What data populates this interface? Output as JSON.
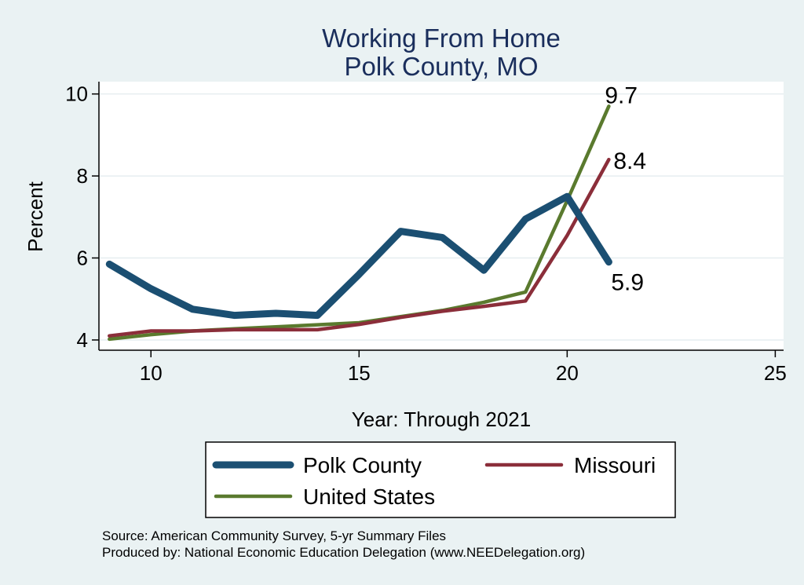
{
  "chart_data": {
    "type": "line",
    "title": [
      "Working From Home",
      "Polk County, MO"
    ],
    "xlabel": "Year: Through 2021",
    "ylabel": "Percent",
    "xlim": [
      8.75,
      25.2
    ],
    "ylim": [
      3.75,
      10.3
    ],
    "xticks": [
      10,
      15,
      20,
      25
    ],
    "yticks": [
      4,
      6,
      8,
      10
    ],
    "grid": "horizontal",
    "legend_position": "bottom",
    "series": [
      {
        "name": "Polk County",
        "color": "#1b4f72",
        "x": [
          9,
          10,
          11,
          12,
          13,
          14,
          15,
          16,
          17,
          18,
          19,
          20,
          21
        ],
        "y": [
          5.85,
          5.25,
          4.75,
          4.6,
          4.65,
          4.6,
          5.6,
          6.65,
          6.5,
          5.7,
          6.95,
          7.5,
          5.9
        ],
        "end_label": "5.9"
      },
      {
        "name": "Missouri",
        "color": "#8b2e3a",
        "x": [
          9,
          10,
          11,
          12,
          13,
          14,
          15,
          16,
          17,
          18,
          19,
          20,
          21
        ],
        "y": [
          4.1,
          4.22,
          4.22,
          4.25,
          4.25,
          4.25,
          4.38,
          4.55,
          4.7,
          4.82,
          4.95,
          6.55,
          8.4
        ],
        "end_label": "8.4"
      },
      {
        "name": "United States",
        "color": "#5a7a2e",
        "x": [
          9,
          10,
          11,
          12,
          13,
          14,
          15,
          16,
          17,
          18,
          19,
          20,
          21
        ],
        "y": [
          4.02,
          4.13,
          4.22,
          4.27,
          4.32,
          4.37,
          4.42,
          4.57,
          4.72,
          4.92,
          5.17,
          7.4,
          9.7
        ],
        "end_label": "9.7"
      }
    ],
    "notes": [
      "Source: American Community Survey, 5-yr Summary Files",
      "Produced by: National Economic Education Delegation (www.NEEDelegation.org)"
    ]
  }
}
